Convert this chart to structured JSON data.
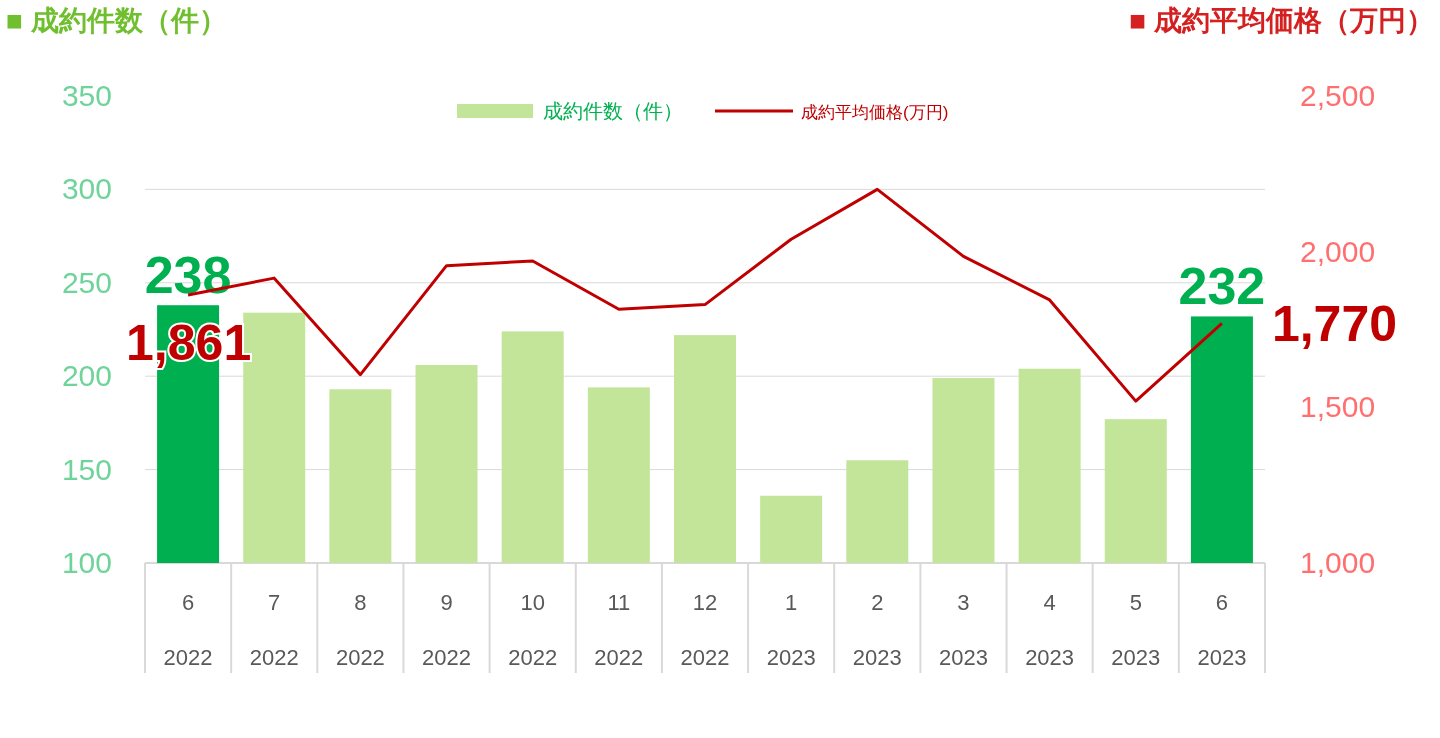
{
  "chart_data": {
    "type": "bar",
    "ylabel": "■ 成約件数（件）",
    "y2label": "■ 成約平均価格（万円）",
    "categories": [
      "6\n2022",
      "7\n2022",
      "8\n2022",
      "9\n2022",
      "10\n2022",
      "11\n2022",
      "12\n2022",
      "1\n2023",
      "2\n2023",
      "3\n2023",
      "4\n2023",
      "5\n2023",
      "6\n2023"
    ],
    "series": [
      {
        "name": "成約件数（件）",
        "color": "#c2e59a",
        "colors": [
          "#00b050",
          "#c2e59a",
          "#c2e59a",
          "#c2e59a",
          "#c2e59a",
          "#c2e59a",
          "#c2e59a",
          "#c2e59a",
          "#c2e59a",
          "#c2e59a",
          "#c2e59a",
          "#c2e59a",
          "#00b050"
        ],
        "values": [
          238,
          234,
          193,
          206,
          224,
          194,
          222,
          136,
          155,
          199,
          204,
          177,
          232
        ],
        "value_labels": [
          "238",
          null,
          null,
          null,
          null,
          null,
          null,
          null,
          null,
          null,
          null,
          null,
          "232"
        ]
      },
      {
        "name": "成約平均価格(万円)",
        "type": "line",
        "axis": "y2",
        "color": "#c00000",
        "values": [
          1861,
          1915,
          1605,
          1955,
          1970,
          1815,
          1830,
          2040,
          2200,
          1985,
          1845,
          1520,
          1770
        ],
        "value_labels": [
          "1,861",
          null,
          null,
          null,
          null,
          null,
          null,
          null,
          null,
          null,
          null,
          null,
          "1,770"
        ]
      }
    ],
    "ylim": [
      100,
      350
    ],
    "yticks": [
      100,
      150,
      200,
      250,
      300,
      350
    ],
    "y2lim": [
      1000,
      2500
    ],
    "y2ticks": [
      {
        "value": 1000,
        "label": "1,000"
      },
      {
        "value": 1500,
        "label": "1,500"
      },
      {
        "value": 2000,
        "label": "2,000"
      },
      {
        "value": 2500,
        "label": "2,500"
      }
    ],
    "grid": "y",
    "legend": "top"
  }
}
